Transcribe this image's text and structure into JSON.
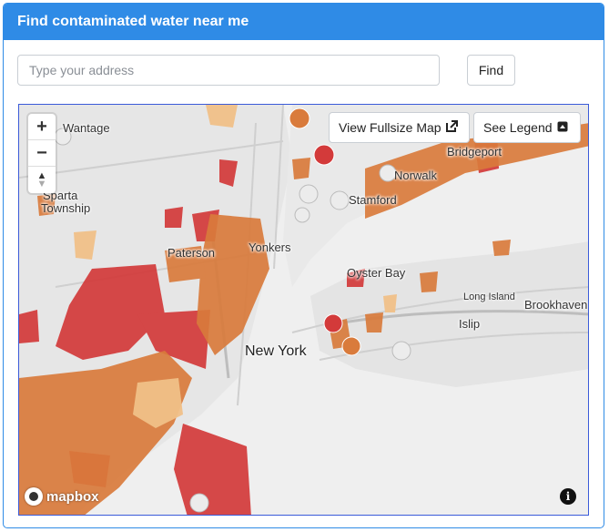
{
  "header": {
    "title": "Find contaminated water near me"
  },
  "search": {
    "placeholder": "Type your address",
    "value": "",
    "find_label": "Find"
  },
  "map": {
    "zoom_in": "+",
    "zoom_out": "−",
    "compass_up": "▲",
    "compass_down": "▼",
    "fullsize_label": "View Fullsize Map",
    "fullsize_icon": "external-link-icon",
    "legend_label": "See Legend",
    "legend_icon": "collapse-icon",
    "attribution": "mapbox",
    "info": "i",
    "labels": {
      "wantage": "Wantage",
      "sparta": "Sparta",
      "township": "Township",
      "paterson": "Paterson",
      "yonkers": "Yonkers",
      "new_york": "New York",
      "stamford": "Stamford",
      "norwalk": "Norwalk",
      "bridgeport": "Bridgeport",
      "oyster_bay": "Oyster Bay",
      "long_island": "Long Island",
      "islip": "Islip",
      "brookhaven": "Brookhaven"
    }
  },
  "colors": {
    "accent": "#2f8be6",
    "high": "#d33a3a",
    "medium": "#d97b3c",
    "low": "#f0c088",
    "water": "#f2f2f2",
    "land": "#e2e2e2"
  }
}
